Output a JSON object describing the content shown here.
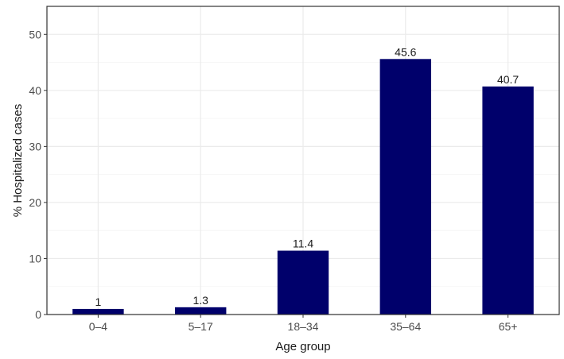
{
  "chart_data": {
    "type": "bar",
    "title": "",
    "xlabel": "Age group",
    "ylabel": "% Hospitalized cases",
    "categories": [
      "0–4",
      "5–17",
      "18–34",
      "35–64",
      "65+"
    ],
    "values": [
      1,
      1.3,
      11.4,
      45.6,
      40.7
    ],
    "value_labels": [
      "1",
      "1.3",
      "11.4",
      "45.6",
      "40.7"
    ],
    "yticks": [
      0,
      10,
      20,
      30,
      40,
      50
    ],
    "ytick_labels": [
      "0",
      "10",
      "20",
      "30",
      "40",
      "50"
    ],
    "ylim": [
      0,
      55
    ],
    "grid": true,
    "legend": "none",
    "colors": {
      "bar": "#00006b",
      "grid": "#ebebeb",
      "grid_minor": "#f4f4f4",
      "panel_border": "#333333"
    }
  }
}
